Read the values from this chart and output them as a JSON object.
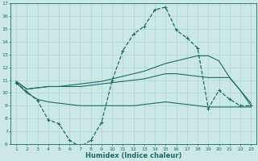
{
  "xlabel": "Humidex (Indice chaleur)",
  "x": [
    1,
    2,
    3,
    4,
    5,
    6,
    7,
    8,
    9,
    10,
    11,
    12,
    13,
    14,
    15,
    16,
    17,
    18,
    19,
    20,
    21,
    22,
    23
  ],
  "line_main": [
    10.8,
    10.1,
    9.4,
    7.9,
    7.6,
    6.3,
    5.8,
    6.3,
    7.7,
    11.0,
    13.3,
    14.6,
    15.2,
    16.5,
    16.7,
    14.9,
    14.3,
    13.5,
    8.8,
    10.2,
    9.5,
    9.0,
    9.0
  ],
  "line_bot": [
    10.8,
    10.0,
    9.5,
    9.3,
    9.2,
    9.1,
    9.0,
    9.0,
    9.0,
    9.0,
    9.0,
    9.0,
    9.1,
    9.2,
    9.3,
    9.2,
    9.1,
    9.0,
    8.9,
    8.9,
    8.9,
    8.9,
    8.9
  ],
  "line_mid": [
    10.9,
    10.3,
    10.4,
    10.5,
    10.5,
    10.5,
    10.5,
    10.6,
    10.7,
    10.8,
    10.9,
    11.0,
    11.1,
    11.3,
    11.5,
    11.5,
    11.4,
    11.3,
    11.2,
    11.2,
    11.2,
    10.2,
    9.0
  ],
  "line_top": [
    10.9,
    10.3,
    10.4,
    10.5,
    10.5,
    10.6,
    10.7,
    10.8,
    10.9,
    11.1,
    11.3,
    11.5,
    11.7,
    12.0,
    12.3,
    12.5,
    12.7,
    12.9,
    12.9,
    12.5,
    11.2,
    10.2,
    9.2
  ],
  "line_color": "#1a6b6b",
  "bg_color": "#cce8e4",
  "grid_color": "#aacfcb",
  "ylim": [
    6,
    17
  ],
  "yticks": [
    6,
    7,
    8,
    9,
    10,
    11,
    12,
    13,
    14,
    15,
    16,
    17
  ]
}
